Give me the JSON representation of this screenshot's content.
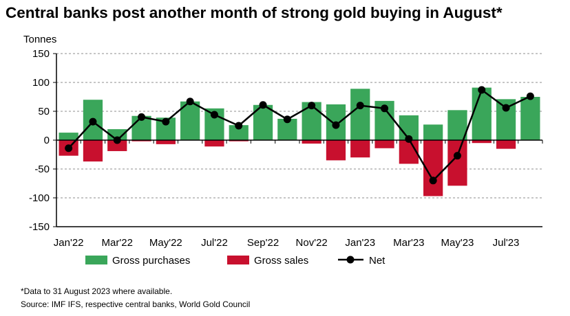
{
  "title": "Central banks post another month of strong gold buying in August*",
  "footnote": "*Data to 31 August 2023 where available.",
  "source": "Source: IMF IFS, respective central banks, World Gold Council",
  "colors": {
    "purchases": "#3aa65a",
    "sales": "#c8102e",
    "net": "#000000",
    "grid": "#8c8c8c"
  },
  "chart_data": {
    "type": "bar",
    "ylabel": "Tonnes",
    "ylim": [
      -150,
      150
    ],
    "yticks": [
      150,
      100,
      50,
      0,
      -50,
      -100,
      -150
    ],
    "ytick_labels": [
      "150",
      "100",
      "50",
      "0",
      "-50",
      "-100",
      "-150"
    ],
    "categories": [
      "Jan'22",
      "Feb'22",
      "Mar'22",
      "Apr'22",
      "May'22",
      "Jun'22",
      "Jul'22",
      "Aug'22",
      "Sep'22",
      "Oct'22",
      "Nov'22",
      "Dec'22",
      "Jan'23",
      "Feb'23",
      "Mar'23",
      "Apr'23",
      "May'23",
      "Jun'23",
      "Jul'23",
      "Aug'23"
    ],
    "xtick_labels": [
      "Jan'22",
      "Mar'22",
      "May'22",
      "Jul'22",
      "Sep'22",
      "Nov'22",
      "Jan'23",
      "Mar'23",
      "May'23",
      "Jul'23"
    ],
    "series": [
      {
        "name": "Gross purchases",
        "kind": "bar",
        "values": [
          13,
          70,
          19,
          42,
          39,
          67,
          55,
          26,
          61,
          37,
          66,
          62,
          89,
          68,
          43,
          27,
          52,
          91,
          71,
          75
        ]
      },
      {
        "name": "Gross sales",
        "kind": "bar",
        "values": [
          -27,
          -37,
          -19,
          -2,
          -7,
          0,
          -11,
          -2,
          0,
          0,
          -6,
          -35,
          -30,
          -14,
          -41,
          -97,
          -79,
          -5,
          -15,
          0
        ]
      },
      {
        "name": "Net",
        "kind": "line",
        "values": [
          -14,
          32,
          0,
          40,
          32,
          67,
          44,
          25,
          61,
          36,
          60,
          26,
          60,
          55,
          2,
          -70,
          -27,
          87,
          56,
          76
        ]
      }
    ],
    "grid": true,
    "legend_position": "bottom"
  }
}
